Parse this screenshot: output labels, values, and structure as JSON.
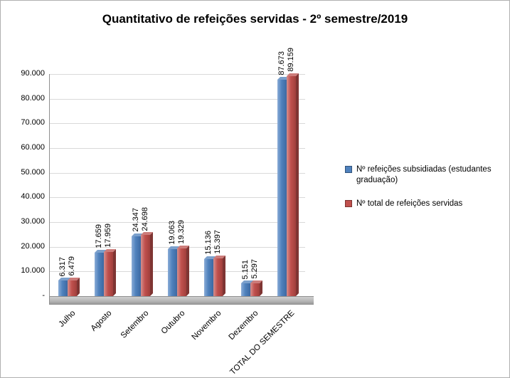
{
  "chart_data": {
    "type": "bar",
    "title": "Quantitativo de refeições servidas - 2º semestre/2019",
    "categories": [
      "Julho",
      "Agosto",
      "Setembro",
      "Outubro",
      "Novembro",
      "Dezembro",
      "TOTAL DO SEMESTRE"
    ],
    "series": [
      {
        "name": "Nº refeições subsidiadas (estudantes graduação)",
        "color": "#4F81BD",
        "values": [
          6317,
          17659,
          24347,
          19063,
          15136,
          5151,
          87673
        ],
        "labels": [
          "6.317",
          "17.659",
          "24.347",
          "19.063",
          "15.136",
          "5.151",
          "87.673"
        ]
      },
      {
        "name": "Nº total de refeições servidas",
        "color": "#C0504D",
        "values": [
          6479,
          17959,
          24698,
          19329,
          15397,
          5297,
          89159
        ],
        "labels": [
          "6.479",
          "17.959",
          "24.698",
          "19.329",
          "15.397",
          "5.297",
          "89.159"
        ]
      }
    ],
    "ylim": [
      0,
      90000
    ],
    "ytick_interval": 10000,
    "ytick_labels": [
      "-",
      "10.000",
      "20.000",
      "30.000",
      "40.000",
      "50.000",
      "60.000",
      "70.000",
      "80.000",
      "90.000"
    ],
    "grid": true,
    "legend_position": "right",
    "bar_style": "3d-clustered-column"
  }
}
